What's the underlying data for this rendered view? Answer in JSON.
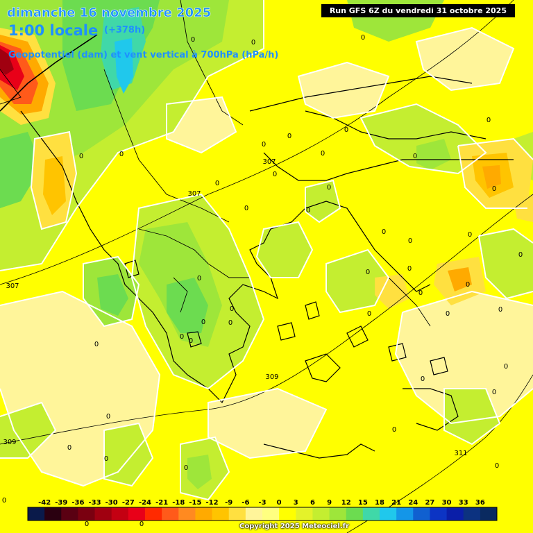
{
  "header": {
    "date": "dimanche 16 novembre 2025",
    "time": "1:00 locale",
    "offset": "(+378h)",
    "field": "Geopotentiel (dam) et vent vertical à 700hPa (hPa/h)"
  },
  "run_banner": "Run GFS 6Z du vendredi 31 octobre 2025",
  "copyright": "Copyright 2025 Meteociel.fr",
  "map": {
    "region": "Grèce / Balkans / Turquie",
    "base_color": "#ffff00",
    "geopotential_labels": [
      "307",
      "307",
      "307",
      "309",
      "309",
      "311"
    ],
    "vertical_velocity_label": "0"
  },
  "legend": {
    "ticks": [
      "-42",
      "-39",
      "-36",
      "-33",
      "-30",
      "-27",
      "-24",
      "-21",
      "-18",
      "-15",
      "-12",
      "-9",
      "-6",
      "-3",
      "0",
      "3",
      "6",
      "9",
      "12",
      "15",
      "18",
      "21",
      "24",
      "27",
      "30",
      "33",
      "36"
    ],
    "colors": [
      "#0a1a4a",
      "#2a0010",
      "#5a0012",
      "#7a0010",
      "#a00010",
      "#c40012",
      "#e80018",
      "#ff2a00",
      "#ff5a1a",
      "#ff8a20",
      "#ffaa00",
      "#ffc400",
      "#ffe040",
      "#fff59a",
      "#ffff80",
      "#ffff00",
      "#e4f22a",
      "#c4ee30",
      "#9ee63a",
      "#6cdc50",
      "#40d8a8",
      "#20c8ec",
      "#1496e8",
      "#1060d0",
      "#0c34c4",
      "#0a1ea8",
      "#0c3280",
      "#0a2a60"
    ]
  }
}
